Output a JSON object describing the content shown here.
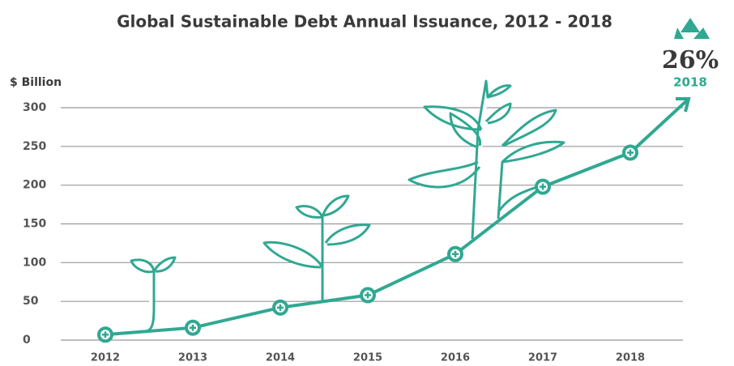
{
  "chart_data": {
    "type": "line",
    "title": "Global Sustainable Debt Annual Issuance, 2012 - 2018",
    "y_label": "$ Billion",
    "categories": [
      "2012",
      "2013",
      "2014",
      "2015",
      "2016",
      "2017",
      "2018"
    ],
    "values": [
      7,
      16,
      42,
      58,
      111,
      198,
      242
    ],
    "color": "#30a892",
    "ylim": [
      0,
      300
    ],
    "yticks": [
      0,
      50,
      100,
      150,
      200,
      250,
      300
    ],
    "grid": true,
    "annotations": [
      "26%",
      "2018"
    ]
  }
}
